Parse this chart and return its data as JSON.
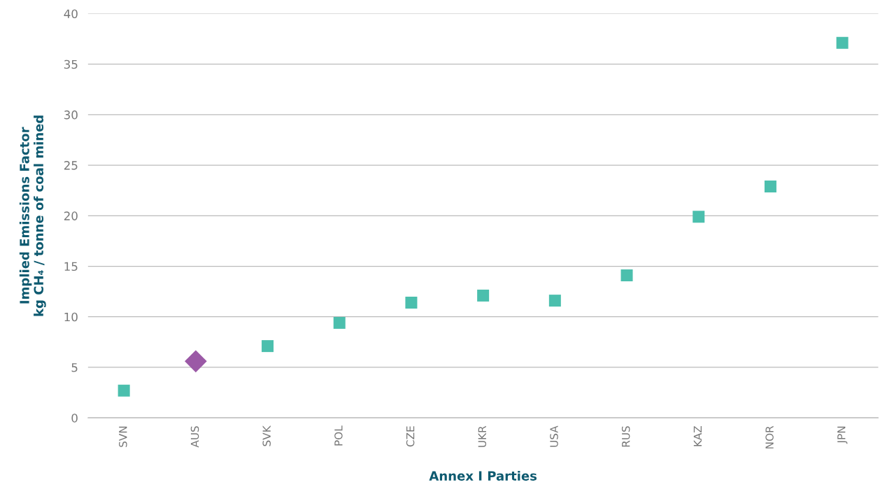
{
  "chart_data": {
    "type": "scatter",
    "xlabel": "Annex I Parties",
    "ylabel": "Implied Emissions Factor\nkg CH₄ / tonne of coal mined",
    "categories": [
      "SVN",
      "AUS",
      "SVK",
      "POL",
      "CZE",
      "UKR",
      "USA",
      "RUS",
      "KAZ",
      "NOR",
      "JPN"
    ],
    "series": [
      {
        "color": "#4bbfad",
        "marker": "square",
        "values": [
          2.7,
          null,
          7.1,
          9.4,
          11.4,
          12.1,
          11.6,
          14.1,
          19.9,
          22.9,
          37.1
        ]
      },
      {
        "color": "#9b59a6",
        "marker": "diamond",
        "values": [
          null,
          5.6,
          null,
          null,
          null,
          null,
          null,
          null,
          null,
          null,
          null
        ]
      }
    ],
    "ylim": [
      0,
      40
    ],
    "yticks": [
      0,
      5,
      10,
      15,
      20,
      25,
      30,
      35,
      40
    ],
    "grid": "y",
    "legend": false
  }
}
